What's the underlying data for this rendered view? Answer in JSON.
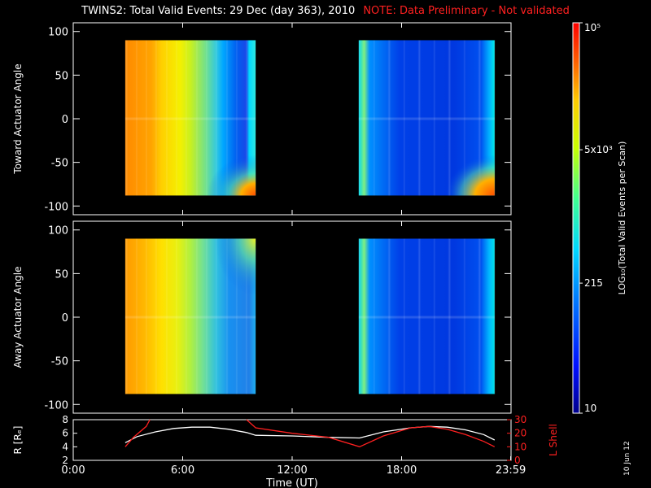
{
  "title": {
    "main": "TWINS2: Total Valid Events: 29 Dec (day 363), 2010",
    "note": "NOTE: Data Preliminary - Not validated"
  },
  "side_date": "10 Jun 12",
  "colors": {
    "background": "#000000",
    "axes": "#ffffff",
    "note": "#ff2020",
    "lshell": "#ff2020",
    "radius": "#ffffff"
  },
  "chart_data": [
    {
      "type": "heatmap",
      "title": "",
      "xlabel": "",
      "ylabel": "Toward Actuator Angle",
      "xlim": [
        0,
        24
      ],
      "ylim": [
        -110,
        110
      ],
      "yticks": [
        100,
        50,
        0,
        -50,
        -100
      ],
      "data_blocks": [
        {
          "x_start": 2.85,
          "x_end": 10.0,
          "y_start": -88,
          "y_end": 90
        },
        {
          "x_start": 15.65,
          "x_end": 23.1,
          "y_start": -88,
          "y_end": 90
        }
      ],
      "colormap": "rainbow",
      "colorbar_ref": "colorbar"
    },
    {
      "type": "heatmap",
      "title": "",
      "xlabel": "",
      "ylabel": "Away Actuator Angle",
      "xlim": [
        0,
        24
      ],
      "ylim": [
        -110,
        110
      ],
      "yticks": [
        100,
        50,
        0,
        -50,
        -100
      ],
      "data_blocks": [
        {
          "x_start": 2.85,
          "x_end": 10.0,
          "y_start": -88,
          "y_end": 90
        },
        {
          "x_start": 15.65,
          "x_end": 23.1,
          "y_start": -88,
          "y_end": 90
        }
      ],
      "colormap": "rainbow",
      "colorbar_ref": "colorbar"
    },
    {
      "type": "line",
      "title": "",
      "xlabel": "Time (UT)",
      "xlim": [
        0,
        24
      ],
      "xtick_labels": [
        "0:00",
        "6:00",
        "12:00",
        "18:00",
        "23:59"
      ],
      "xticks": [
        0,
        6,
        12,
        18,
        23.98
      ],
      "ylabel_left": "R [Rₑ]",
      "ylim_left": [
        2,
        8
      ],
      "yticks_left": [
        8,
        6,
        4,
        2
      ],
      "ylabel_right": "L Shell",
      "ylim_right": [
        0,
        30
      ],
      "yticks_right": [
        30,
        20,
        10,
        0
      ],
      "series": [
        {
          "name": "R [Rₑ]",
          "axis": "left",
          "x": [
            2.85,
            3.5,
            4.5,
            5.5,
            6.5,
            7.5,
            8.5,
            9.5,
            10.0,
            12.0,
            14.0,
            15.7,
            17.0,
            18.5,
            19.5,
            20.5,
            21.5,
            22.5,
            23.1
          ],
          "y": [
            4.6,
            5.5,
            6.2,
            6.7,
            6.9,
            6.9,
            6.6,
            6.1,
            5.7,
            5.6,
            5.4,
            5.3,
            6.2,
            6.8,
            7.0,
            6.9,
            6.5,
            5.8,
            5.0
          ]
        },
        {
          "name": "L Shell",
          "axis": "right",
          "x": [
            2.85,
            3.3,
            4.0,
            4.2,
            null,
            9.5,
            10.0,
            12.0,
            14.0,
            15.7,
            17.0,
            18.5,
            19.5,
            20.5,
            21.5,
            22.5,
            23.1
          ],
          "y": [
            10,
            17,
            25,
            30,
            null,
            30,
            24,
            20,
            17,
            10,
            18,
            24,
            25,
            23,
            19,
            14,
            10
          ]
        }
      ]
    }
  ],
  "colorbar": {
    "label": "LOG₁₀(Total Valid Events per Scan)",
    "scale": "log",
    "range": [
      10,
      100000
    ],
    "tick_labels": [
      "10⁵",
      "5x10³",
      "215",
      "10"
    ],
    "tick_values": [
      100000,
      5000,
      215,
      10
    ]
  }
}
